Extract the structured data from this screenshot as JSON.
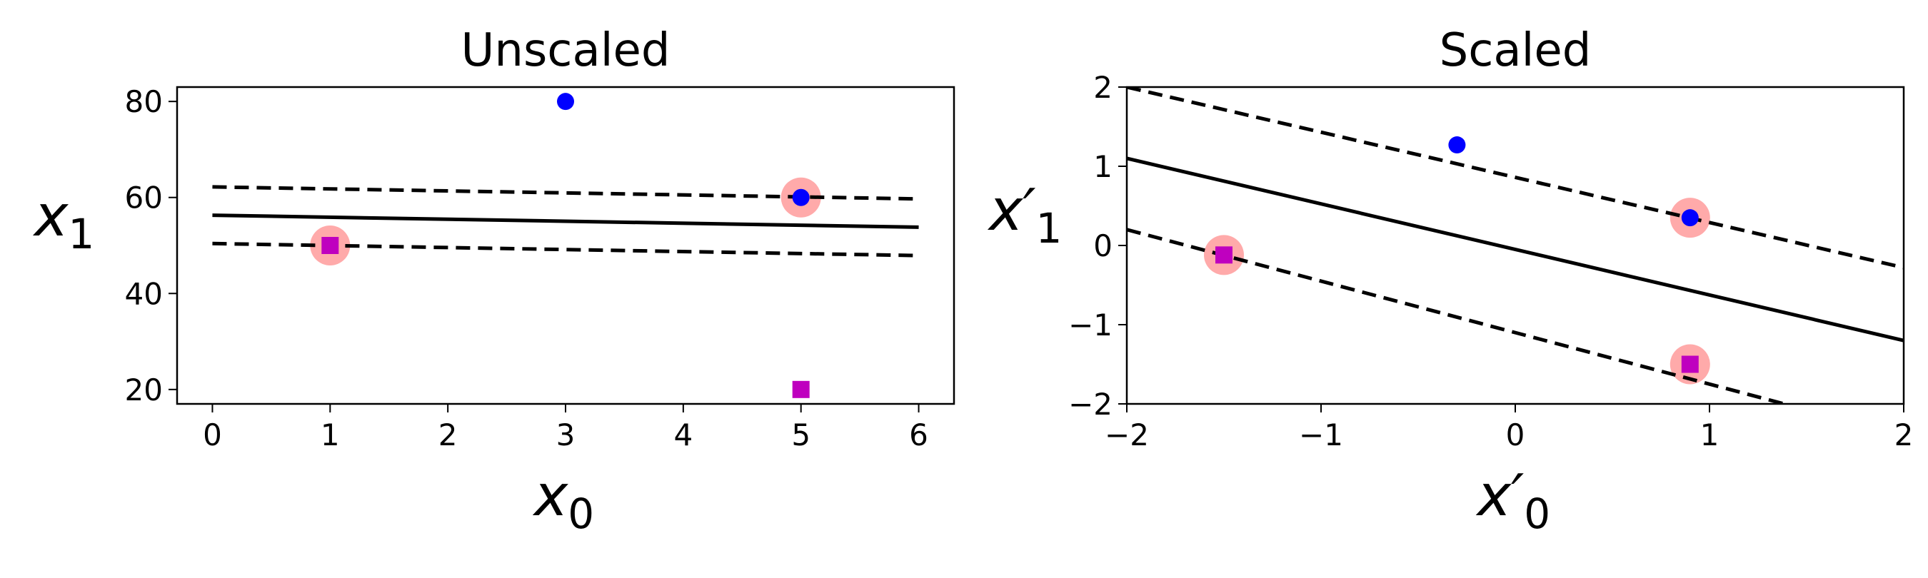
{
  "chart_data": [
    {
      "type": "scatter",
      "title": "Unscaled",
      "xlabel": "x",
      "xlabel_sub": "0",
      "ylabel": "x",
      "ylabel_sub": "1",
      "xlim": [
        -0.3,
        6.3
      ],
      "ylim": [
        17,
        83
      ],
      "xticks": [
        0,
        1,
        2,
        3,
        4,
        5,
        6
      ],
      "yticks": [
        20,
        40,
        60,
        80
      ],
      "xtick_labels": [
        "0",
        "1",
        "2",
        "3",
        "4",
        "5",
        "6"
      ],
      "ytick_labels": [
        "20",
        "40",
        "60",
        "80"
      ],
      "grid": false,
      "series": [
        {
          "marker": "circle",
          "color": "#0000ff",
          "points": [
            [
              3,
              80
            ],
            [
              5,
              60
            ]
          ]
        },
        {
          "marker": "square",
          "color": "#bf00bf",
          "points": [
            [
              1,
              50
            ],
            [
              5,
              20
            ]
          ]
        }
      ],
      "support_vectors": {
        "color": "#ffaaaa",
        "points": [
          [
            1,
            50
          ],
          [
            5,
            60
          ]
        ]
      },
      "lines": [
        {
          "style": "solid",
          "points": [
            [
              0,
              56.3
            ],
            [
              6,
              53.8
            ]
          ]
        },
        {
          "style": "dashed",
          "points": [
            [
              0,
              62.2
            ],
            [
              6,
              59.7
            ]
          ]
        },
        {
          "style": "dashed",
          "points": [
            [
              0,
              50.4
            ],
            [
              6,
              47.9
            ]
          ]
        }
      ]
    },
    {
      "type": "scatter",
      "title": "Scaled",
      "xlabel": "x′",
      "xlabel_sub": "0",
      "ylabel": "x′",
      "ylabel_sub": "1",
      "xlim": [
        -2,
        2
      ],
      "ylim": [
        -2,
        2
      ],
      "xticks": [
        -2,
        -1,
        0,
        1,
        2
      ],
      "yticks": [
        -2,
        -1,
        0,
        1,
        2
      ],
      "xtick_labels": [
        "−2",
        "−1",
        "0",
        "1",
        "2"
      ],
      "ytick_labels": [
        "−2",
        "−1",
        "0",
        "1",
        "2"
      ],
      "grid": false,
      "series": [
        {
          "marker": "circle",
          "color": "#0000ff",
          "points": [
            [
              -0.3,
              1.27
            ],
            [
              0.9,
              0.35
            ]
          ]
        },
        {
          "marker": "square",
          "color": "#bf00bf",
          "points": [
            [
              -1.5,
              -0.12
            ],
            [
              0.9,
              -1.5
            ]
          ]
        }
      ],
      "support_vectors": {
        "color": "#ffaaaa",
        "points": [
          [
            -1.5,
            -0.12
          ],
          [
            0.9,
            0.35
          ],
          [
            0.9,
            -1.5
          ]
        ]
      },
      "lines": [
        {
          "style": "solid",
          "points": [
            [
              -2,
              1.1
            ],
            [
              2,
              -1.2
            ]
          ]
        },
        {
          "style": "dashed",
          "points": [
            [
              -2,
              2.0
            ],
            [
              2,
              -0.28
            ]
          ]
        },
        {
          "style": "dashed",
          "points": [
            [
              -2,
              0.2
            ],
            [
              2,
              -2.4
            ]
          ]
        }
      ]
    }
  ]
}
